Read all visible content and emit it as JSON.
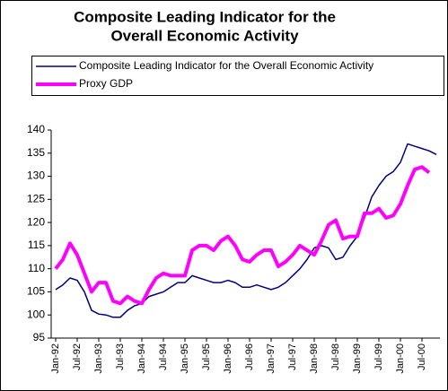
{
  "chart_data": {
    "type": "line",
    "title": [
      "Composite Leading Indicator for the",
      "Overall Economic Activity"
    ],
    "categories": [
      "Jan-92",
      null,
      null,
      "Jul-92",
      null,
      null,
      "Jan-93",
      null,
      null,
      "Jul-93",
      null,
      null,
      "Jan-94",
      null,
      null,
      "Jul-94",
      null,
      null,
      "Jan-95",
      null,
      null,
      "Jul-95",
      null,
      null,
      "Jan-96",
      null,
      null,
      "Jul-96",
      null,
      null,
      "Jan-97",
      null,
      null,
      "Jul-97",
      null,
      null,
      "Jan-98",
      null,
      null,
      "Jul-98",
      null,
      null,
      "Jan-99",
      null,
      null,
      "Jul-99",
      null,
      null,
      "Jan-00",
      null,
      null,
      "Jul-00",
      null,
      null
    ],
    "series": [
      {
        "name": "Composite Leading Indicator for the Overall Economic Activity",
        "color": "#000080",
        "width": 1.5,
        "values": [
          105.5,
          106.5,
          108,
          107.5,
          105,
          101,
          100.2,
          100,
          99.5,
          99.5,
          101,
          102,
          102.5,
          104,
          104.5,
          105,
          106,
          107,
          107,
          108.5,
          108,
          107.5,
          107,
          107,
          107.5,
          107,
          106,
          106,
          106.5,
          106,
          105.5,
          106,
          107,
          108.5,
          110,
          112,
          114.5,
          115,
          114.5,
          112,
          112.5,
          115,
          117,
          121,
          125.5,
          128,
          130,
          131,
          133,
          137,
          136.5,
          136,
          135.5,
          134.7
        ]
      },
      {
        "name": "Proxy GDP",
        "color": "#ff00ff",
        "width": 4,
        "values": [
          110,
          112,
          115.5,
          113,
          109,
          105,
          107,
          107,
          103,
          102.5,
          104,
          103,
          102.5,
          105.5,
          108,
          109,
          108.5,
          108.5,
          108.5,
          114,
          115,
          115,
          114,
          116,
          117,
          115,
          112,
          111.5,
          113,
          114,
          114,
          110.5,
          111.5,
          113,
          115,
          114,
          113,
          116,
          119.5,
          120.5,
          116.5,
          117,
          117,
          122,
          122,
          123,
          121,
          121.5,
          124,
          128,
          131.5,
          132,
          130.8,
          null
        ]
      }
    ],
    "ylim": [
      95,
      140
    ],
    "yticks": [
      95,
      100,
      105,
      110,
      115,
      120,
      125,
      130,
      135,
      140
    ]
  }
}
